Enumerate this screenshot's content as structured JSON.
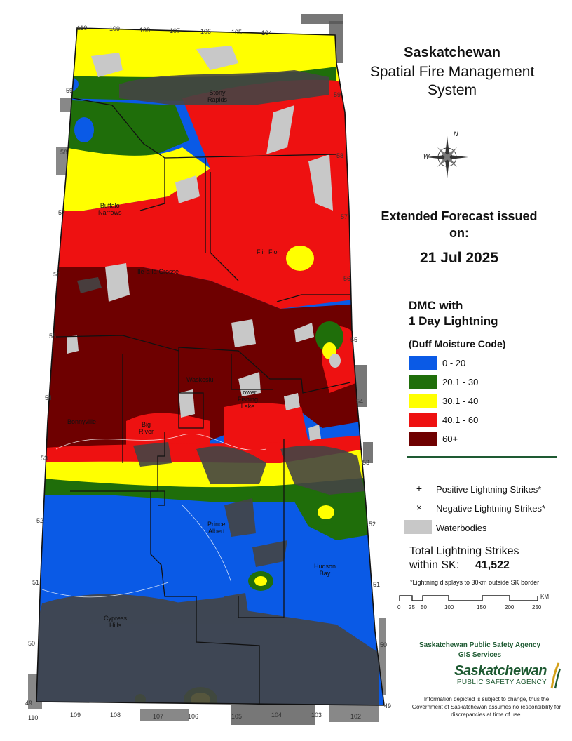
{
  "title": {
    "region": "Saskatchewan",
    "system": "Spatial Fire Management System"
  },
  "forecast": {
    "heading": "Extended Forecast issued on:",
    "date": "21 Jul 2025"
  },
  "legend": {
    "title": "DMC with\n1 Day Lightning",
    "subtitle": "(Duff Moisture Code)",
    "classes": [
      {
        "label": "0 - 20",
        "color": "#0a5ae6"
      },
      {
        "label": "20.1 - 30",
        "color": "#1f6e0a"
      },
      {
        "label": "30.1 - 40",
        "color": "#ffff00"
      },
      {
        "label": "40.1 - 60",
        "color": "#ee1111"
      },
      {
        "label": "60+",
        "color": "#6e0000"
      }
    ],
    "symbols": [
      {
        "icon": "plus-icon",
        "glyph": "+",
        "label": "Positive Lightning Strikes*"
      },
      {
        "icon": "x-icon",
        "glyph": "×",
        "label": "Negative Lightning Strikes*"
      },
      {
        "icon": "waterbody-swatch",
        "glyph": "",
        "label": "Waterbodies",
        "color": "#c8c8c8"
      }
    ]
  },
  "totals": {
    "label": "Total Lightning Strikes\nwithin SK:",
    "value": "41,522",
    "note": "*Lightning displays to 30km outside SK border"
  },
  "scale": {
    "labels": [
      "0",
      "25",
      "50",
      "100",
      "150",
      "200",
      "250"
    ],
    "unit": "KM"
  },
  "agency": {
    "line": "Saskatchewan Public Safety Agency\nGIS  Services",
    "logo_name": "Saskatchewan",
    "logo_sub": "PUBLIC SAFETY AGENCY",
    "disclaimer": "Information depicted is subject to change, thus the Government of Saskatchewan assumes no responsibility for discrepancies at time of use."
  },
  "compass": {
    "n": "N",
    "w": "W"
  },
  "map": {
    "longitude_ticks_top": [
      "110",
      "109",
      "108",
      "107",
      "106",
      "105",
      "104"
    ],
    "longitude_ticks_bottom": [
      "110",
      "109",
      "108",
      "107",
      "106",
      "105",
      "104",
      "103",
      "102"
    ],
    "latitude_ticks_left": [
      "59",
      "58",
      "57",
      "56",
      "55",
      "54",
      "53",
      "52",
      "51",
      "50",
      "49"
    ],
    "latitude_ticks_right": [
      "59",
      "58",
      "57",
      "56",
      "55",
      "54",
      "53",
      "52",
      "51",
      "50",
      "49"
    ],
    "places": [
      {
        "name": "Stony\nRapids"
      },
      {
        "name": "Buffalo\nNarrows"
      },
      {
        "name": "Ile-a-la-Crosse"
      },
      {
        "name": "Flin Flon"
      },
      {
        "name": "Waskesiu"
      },
      {
        "name": "Lower\nFishing\nLake"
      },
      {
        "name": "Bonnyville"
      },
      {
        "name": "Big\nRiver"
      },
      {
        "name": "Prince\nAlbert"
      },
      {
        "name": "Hudson\nBay"
      },
      {
        "name": "Cypress\nHills"
      }
    ]
  }
}
